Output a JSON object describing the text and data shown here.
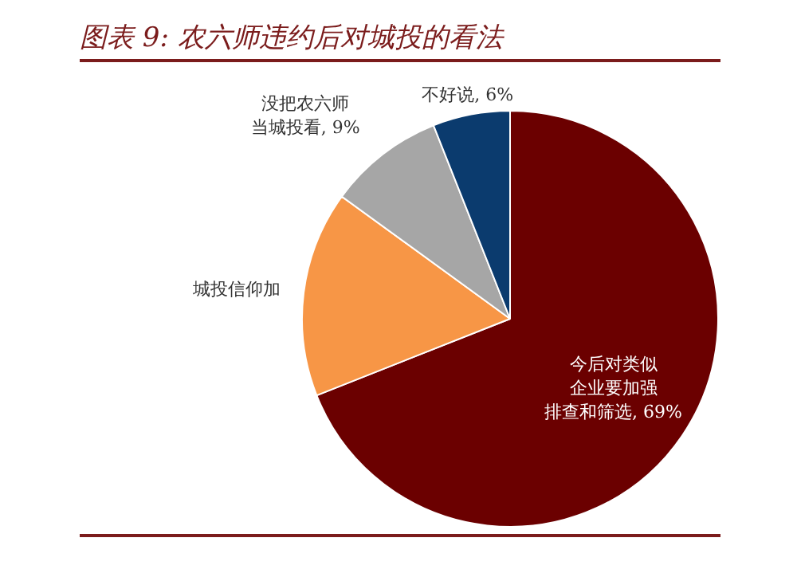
{
  "chart_data": {
    "type": "pie",
    "title": "图表 9: 农六师违约后对城投的看法",
    "categories": [
      "今后对类似企业要加强排查和筛选",
      "城投信仰加",
      "没把农六师当城投看",
      "不好说"
    ],
    "values": [
      69,
      16,
      9,
      6
    ],
    "colors": [
      "#6b0000",
      "#f79646",
      "#a6a6a6",
      "#0b3b6e"
    ],
    "value_labels": [
      "69%",
      null,
      "9%",
      "6%"
    ],
    "legend": false
  }
}
